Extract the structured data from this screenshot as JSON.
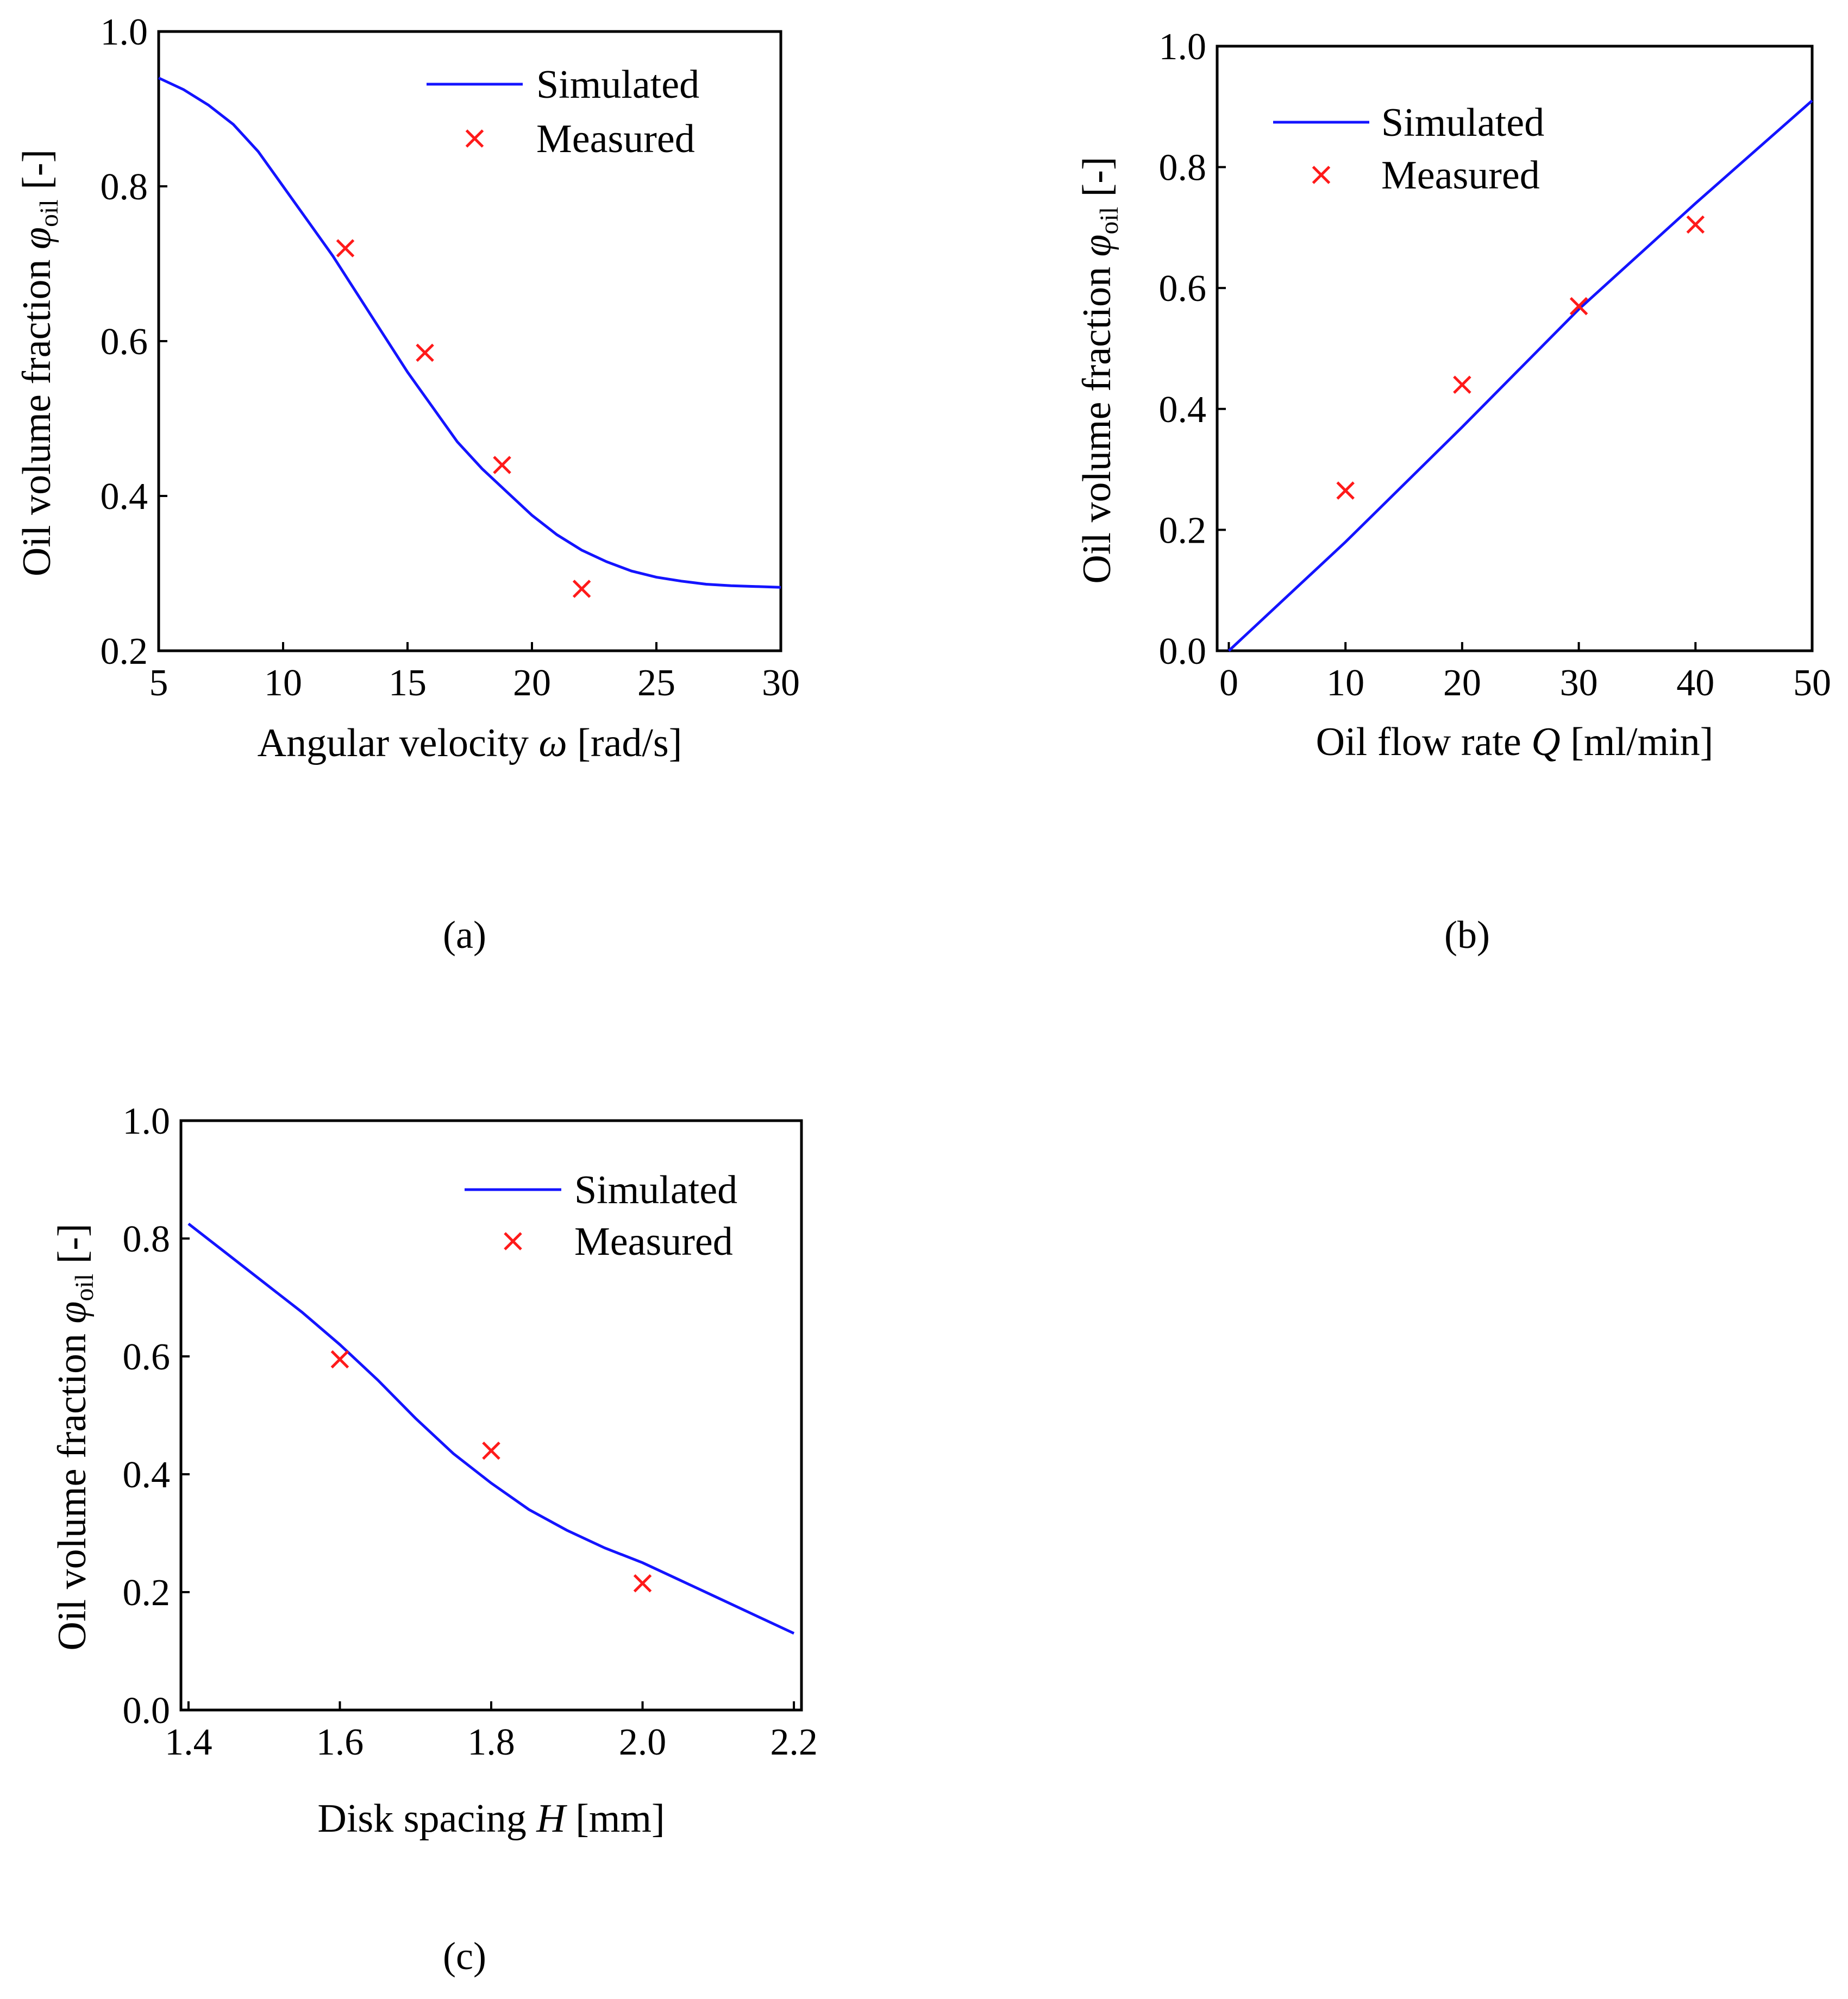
{
  "chart_data": [
    {
      "id": "a",
      "type": "line",
      "caption": "(a)",
      "xlabel": "Angular velocity ω [rad/s]",
      "xlabel_parts": {
        "pre": "Angular velocity ",
        "var": "ω",
        "post": " [rad/s]"
      },
      "ylabel": "Oil volume fraction φoil [-]",
      "ylabel_parts": {
        "pre": "Oil volume fraction ",
        "var": "φ",
        "sub": "oil",
        "post": " [-]"
      },
      "xlim": [
        5,
        30
      ],
      "ylim": [
        0.2,
        1.0
      ],
      "xticks": [
        5,
        10,
        15,
        20,
        25,
        30
      ],
      "xtick_labels": [
        "5",
        "10",
        "15",
        "20",
        "25",
        "30"
      ],
      "yticks": [
        0.2,
        0.4,
        0.6,
        0.8,
        1.0
      ],
      "ytick_labels": [
        "0.2",
        "0.4",
        "0.6",
        "0.8",
        "1.0"
      ],
      "legend": {
        "position": "top-right",
        "entries": [
          "Simulated",
          "Measured"
        ]
      },
      "series": [
        {
          "name": "Simulated",
          "kind": "line",
          "color": "#1414ff",
          "x": [
            5,
            6,
            7,
            8,
            9,
            10,
            11,
            12,
            13,
            14,
            15,
            16,
            17,
            18,
            19,
            20,
            21,
            22,
            23,
            24,
            25,
            26,
            27,
            28,
            29,
            30
          ],
          "y": [
            0.94,
            0.925,
            0.905,
            0.88,
            0.845,
            0.8,
            0.755,
            0.71,
            0.66,
            0.61,
            0.56,
            0.515,
            0.47,
            0.435,
            0.405,
            0.375,
            0.35,
            0.33,
            0.315,
            0.303,
            0.295,
            0.29,
            0.286,
            0.284,
            0.283,
            0.282
          ]
        },
        {
          "name": "Measured",
          "kind": "marker",
          "color": "#ff1a1a",
          "x": [
            12.5,
            15.7,
            18.8,
            22.0
          ],
          "y": [
            0.72,
            0.585,
            0.44,
            0.28
          ]
        }
      ]
    },
    {
      "id": "b",
      "type": "line",
      "caption": "(b)",
      "xlabel": "Oil flow rate Q [ml/min]",
      "xlabel_parts": {
        "pre": "Oil flow rate ",
        "var": "Q",
        "post": " [ml/min]"
      },
      "ylabel": "Oil volume fraction φoil [-]",
      "ylabel_parts": {
        "pre": "Oil volume fraction ",
        "var": "φ",
        "sub": "oil",
        "post": " [-]"
      },
      "xlim": [
        -1,
        50
      ],
      "ylim": [
        0.0,
        1.0
      ],
      "xticks": [
        0,
        10,
        20,
        30,
        40,
        50
      ],
      "xtick_labels": [
        "0",
        "10",
        "20",
        "30",
        "40",
        "50"
      ],
      "yticks": [
        0.0,
        0.2,
        0.4,
        0.6,
        0.8,
        1.0
      ],
      "ytick_labels": [
        "0.0",
        "0.2",
        "0.4",
        "0.6",
        "0.8",
        "1.0"
      ],
      "legend": {
        "position": "top-left",
        "entries": [
          "Simulated",
          "Measured"
        ]
      },
      "series": [
        {
          "name": "Simulated",
          "kind": "line",
          "color": "#1414ff",
          "x": [
            0,
            10,
            20,
            30,
            40,
            50
          ],
          "y": [
            0.0,
            0.18,
            0.37,
            0.565,
            0.74,
            0.91
          ]
        },
        {
          "name": "Measured",
          "kind": "marker",
          "color": "#ff1a1a",
          "x": [
            10,
            20,
            30,
            40
          ],
          "y": [
            0.265,
            0.44,
            0.57,
            0.705
          ]
        }
      ]
    },
    {
      "id": "c",
      "type": "line",
      "caption": "(c)",
      "xlabel": "Disk spacing H [mm]",
      "xlabel_parts": {
        "pre": "Disk spacing ",
        "var": "H",
        "post": " [mm]"
      },
      "ylabel": "Oil volume fraction φoil [-]",
      "ylabel_parts": {
        "pre": "Oil volume fraction ",
        "var": "φ",
        "sub": "oil",
        "post": " [-]"
      },
      "xlim": [
        1.39,
        2.21
      ],
      "ylim": [
        0.0,
        1.0
      ],
      "xticks": [
        1.4,
        1.6,
        1.8,
        2.0,
        2.2
      ],
      "xtick_labels": [
        "1.4",
        "1.6",
        "1.8",
        "2.0",
        "2.2"
      ],
      "yticks": [
        0.0,
        0.2,
        0.4,
        0.6,
        0.8,
        1.0
      ],
      "ytick_labels": [
        "0.0",
        "0.2",
        "0.4",
        "0.6",
        "0.8",
        "1.0"
      ],
      "legend": {
        "position": "top-right",
        "entries": [
          "Simulated",
          "Measured"
        ]
      },
      "series": [
        {
          "name": "Simulated",
          "kind": "line",
          "color": "#1414ff",
          "x": [
            1.4,
            1.45,
            1.5,
            1.55,
            1.6,
            1.65,
            1.7,
            1.75,
            1.8,
            1.85,
            1.9,
            1.95,
            2.0,
            2.05,
            2.1,
            2.15,
            2.2
          ],
          "y": [
            0.825,
            0.775,
            0.725,
            0.675,
            0.62,
            0.56,
            0.495,
            0.435,
            0.385,
            0.34,
            0.305,
            0.275,
            0.25,
            0.22,
            0.19,
            0.16,
            0.13
          ]
        },
        {
          "name": "Measured",
          "kind": "marker",
          "color": "#ff1a1a",
          "x": [
            1.6,
            1.8,
            2.0
          ],
          "y": [
            0.595,
            0.44,
            0.215
          ]
        }
      ]
    }
  ]
}
